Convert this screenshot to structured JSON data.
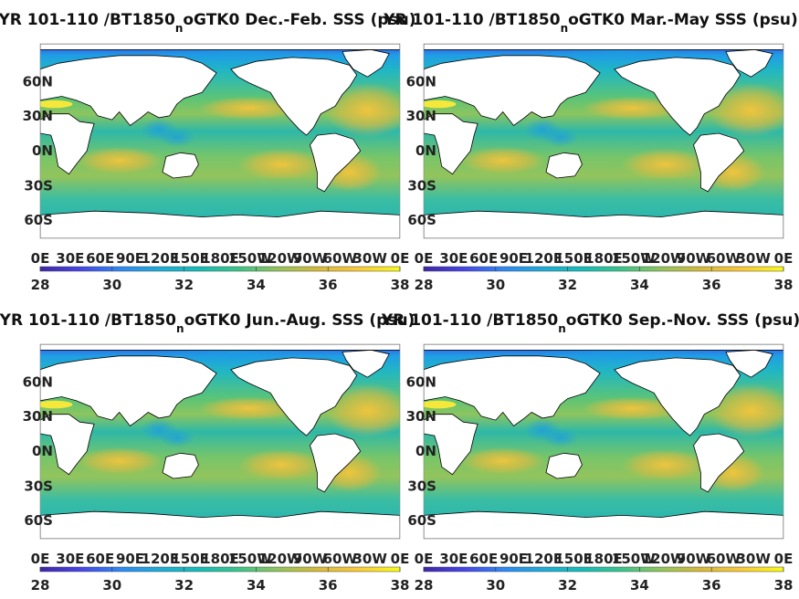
{
  "chart_data": [
    {
      "type": "heatmap",
      "title_pre": "YR 101-110 /BT1850",
      "title_sub": "n",
      "title_post": "oGTK0 Dec.-Feb. SSS (psu)",
      "x_ticks": [
        "0E",
        "30E",
        "60E",
        "90E",
        "120E",
        "150E",
        "180E",
        "150W",
        "120W",
        "90W",
        "60W",
        "30W",
        "0E"
      ],
      "y_ticks": [
        "60N",
        "30N",
        "0N",
        "30S",
        "60S"
      ],
      "colorbar_ticks": [
        "28",
        "30",
        "32",
        "34",
        "36",
        "38"
      ],
      "zlim": [
        28,
        38
      ]
    },
    {
      "type": "heatmap",
      "title_pre": "YR 101-110 /BT1850",
      "title_sub": "n",
      "title_post": "oGTK0 Mar.-May SSS (psu)",
      "x_ticks": [
        "0E",
        "30E",
        "60E",
        "90E",
        "120E",
        "150E",
        "180E",
        "150W",
        "120W",
        "90W",
        "60W",
        "30W",
        "0E"
      ],
      "y_ticks": [
        "60N",
        "30N",
        "0N",
        "30S",
        "60S"
      ],
      "colorbar_ticks": [
        "28",
        "30",
        "32",
        "34",
        "36",
        "38"
      ],
      "zlim": [
        28,
        38
      ]
    },
    {
      "type": "heatmap",
      "title_pre": "YR 101-110 /BT1850",
      "title_sub": "n",
      "title_post": "oGTK0 Jun.-Aug. SSS (psu)",
      "x_ticks": [
        "0E",
        "30E",
        "60E",
        "90E",
        "120E",
        "150E",
        "180E",
        "150W",
        "120W",
        "90W",
        "60W",
        "30W",
        "0E"
      ],
      "y_ticks": [
        "60N",
        "30N",
        "0N",
        "30S",
        "60S"
      ],
      "colorbar_ticks": [
        "28",
        "30",
        "32",
        "34",
        "36",
        "38"
      ],
      "zlim": [
        28,
        38
      ]
    },
    {
      "type": "heatmap",
      "title_pre": "YR 101-110 /BT1850",
      "title_sub": "n",
      "title_post": "oGTK0 Sep.-Nov. SSS (psu)",
      "x_ticks": [
        "0E",
        "30E",
        "60E",
        "90E",
        "120E",
        "150E",
        "180E",
        "150W",
        "120W",
        "90W",
        "60W",
        "30W",
        "0E"
      ],
      "y_ticks": [
        "60N",
        "30N",
        "0N",
        "30S",
        "60S"
      ],
      "colorbar_ticks": [
        "28",
        "30",
        "32",
        "34",
        "36",
        "38"
      ],
      "zlim": [
        28,
        38
      ]
    }
  ],
  "colors": {
    "cmap": [
      "#3e26a8",
      "#4743e8",
      "#2e87f7",
      "#1cadda",
      "#12beb9",
      "#38c68a",
      "#92c55b",
      "#d6ba3a",
      "#fcc837",
      "#f9fb15"
    ],
    "ocean_base": "#2bb9a0",
    "land": "#ffffff",
    "coast": "#000000"
  }
}
